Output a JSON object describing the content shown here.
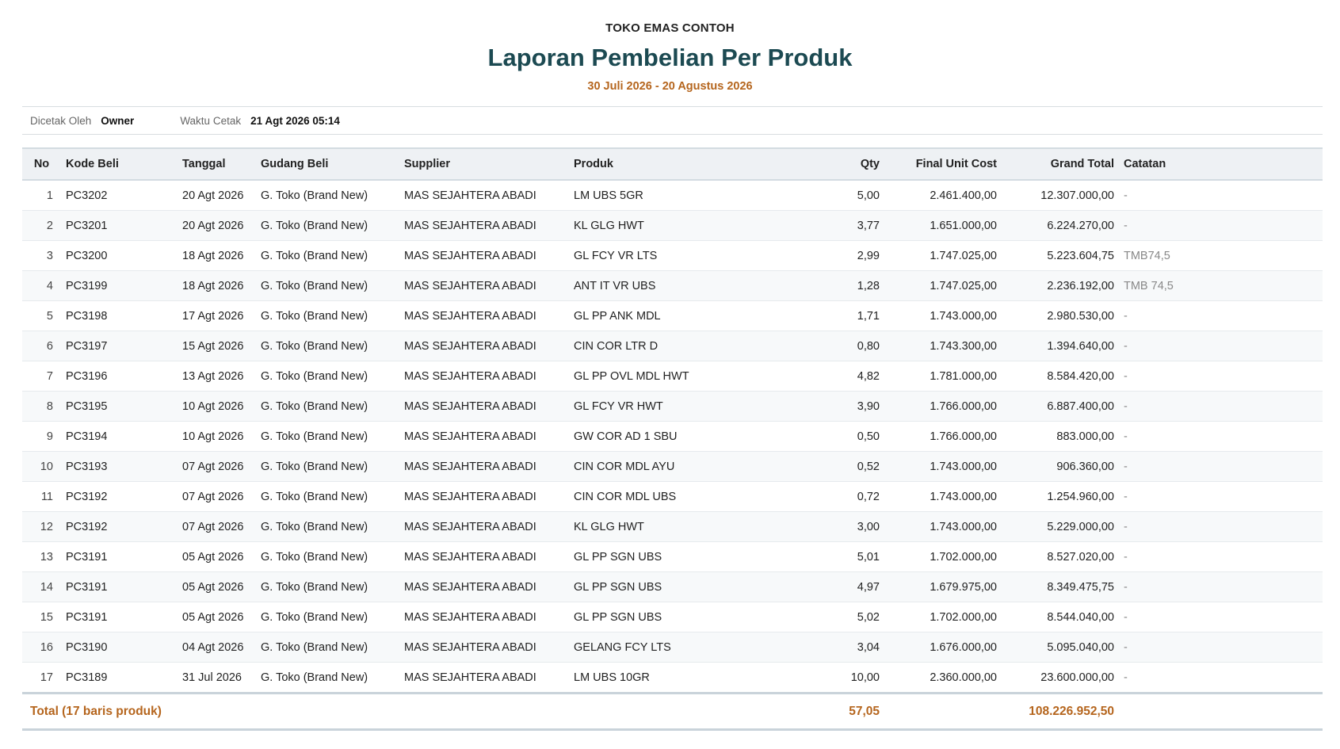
{
  "header": {
    "store_name": "TOKO EMAS CONTOH",
    "title": "Laporan Pembelian Per Produk",
    "period": "30 Juli 2026 - 20 Agustus 2026"
  },
  "meta": {
    "printed_by_label": "Dicetak Oleh",
    "printed_by_value": "Owner",
    "print_time_label": "Waktu Cetak",
    "print_time_value": "21 Agt 2026 05:14"
  },
  "table": {
    "columns": {
      "no": "No",
      "kode": "Kode Beli",
      "tanggal": "Tanggal",
      "gudang": "Gudang Beli",
      "supplier": "Supplier",
      "produk": "Produk",
      "qty": "Qty",
      "final_unit_cost": "Final Unit Cost",
      "grand_total": "Grand Total",
      "catatan": "Catatan"
    },
    "rows": [
      {
        "no": "1",
        "kode": "PC3202",
        "tanggal": "20 Agt 2026",
        "gudang": "G. Toko (Brand New)",
        "supplier": "MAS SEJAHTERA ABADI",
        "produk": "LM UBS 5GR",
        "qty": "5,00",
        "fuc": "2.461.400,00",
        "gt": "12.307.000,00",
        "catatan": "-"
      },
      {
        "no": "2",
        "kode": "PC3201",
        "tanggal": "20 Agt 2026",
        "gudang": "G. Toko (Brand New)",
        "supplier": "MAS SEJAHTERA ABADI",
        "produk": "KL GLG HWT",
        "qty": "3,77",
        "fuc": "1.651.000,00",
        "gt": "6.224.270,00",
        "catatan": "-"
      },
      {
        "no": "3",
        "kode": "PC3200",
        "tanggal": "18 Agt 2026",
        "gudang": "G. Toko (Brand New)",
        "supplier": "MAS SEJAHTERA ABADI",
        "produk": "GL FCY VR LTS",
        "qty": "2,99",
        "fuc": "1.747.025,00",
        "gt": "5.223.604,75",
        "catatan": "TMB74,5"
      },
      {
        "no": "4",
        "kode": "PC3199",
        "tanggal": "18 Agt 2026",
        "gudang": "G. Toko (Brand New)",
        "supplier": "MAS SEJAHTERA ABADI",
        "produk": "ANT IT VR UBS",
        "qty": "1,28",
        "fuc": "1.747.025,00",
        "gt": "2.236.192,00",
        "catatan": "TMB 74,5"
      },
      {
        "no": "5",
        "kode": "PC3198",
        "tanggal": "17 Agt 2026",
        "gudang": "G. Toko (Brand New)",
        "supplier": "MAS SEJAHTERA ABADI",
        "produk": "GL PP ANK MDL",
        "qty": "1,71",
        "fuc": "1.743.000,00",
        "gt": "2.980.530,00",
        "catatan": "-"
      },
      {
        "no": "6",
        "kode": "PC3197",
        "tanggal": "15 Agt 2026",
        "gudang": "G. Toko (Brand New)",
        "supplier": "MAS SEJAHTERA ABADI",
        "produk": "CIN COR LTR D",
        "qty": "0,80",
        "fuc": "1.743.300,00",
        "gt": "1.394.640,00",
        "catatan": "-"
      },
      {
        "no": "7",
        "kode": "PC3196",
        "tanggal": "13 Agt 2026",
        "gudang": "G. Toko (Brand New)",
        "supplier": "MAS SEJAHTERA ABADI",
        "produk": "GL PP OVL MDL HWT",
        "qty": "4,82",
        "fuc": "1.781.000,00",
        "gt": "8.584.420,00",
        "catatan": "-"
      },
      {
        "no": "8",
        "kode": "PC3195",
        "tanggal": "10 Agt 2026",
        "gudang": "G. Toko (Brand New)",
        "supplier": "MAS SEJAHTERA ABADI",
        "produk": "GL FCY VR HWT",
        "qty": "3,90",
        "fuc": "1.766.000,00",
        "gt": "6.887.400,00",
        "catatan": "-"
      },
      {
        "no": "9",
        "kode": "PC3194",
        "tanggal": "10 Agt 2026",
        "gudang": "G. Toko (Brand New)",
        "supplier": "MAS SEJAHTERA ABADI",
        "produk": "GW COR AD 1 SBU",
        "qty": "0,50",
        "fuc": "1.766.000,00",
        "gt": "883.000,00",
        "catatan": "-"
      },
      {
        "no": "10",
        "kode": "PC3193",
        "tanggal": "07 Agt 2026",
        "gudang": "G. Toko (Brand New)",
        "supplier": "MAS SEJAHTERA ABADI",
        "produk": "CIN COR MDL AYU",
        "qty": "0,52",
        "fuc": "1.743.000,00",
        "gt": "906.360,00",
        "catatan": "-"
      },
      {
        "no": "11",
        "kode": "PC3192",
        "tanggal": "07 Agt 2026",
        "gudang": "G. Toko (Brand New)",
        "supplier": "MAS SEJAHTERA ABADI",
        "produk": "CIN COR MDL UBS",
        "qty": "0,72",
        "fuc": "1.743.000,00",
        "gt": "1.254.960,00",
        "catatan": "-"
      },
      {
        "no": "12",
        "kode": "PC3192",
        "tanggal": "07 Agt 2026",
        "gudang": "G. Toko (Brand New)",
        "supplier": "MAS SEJAHTERA ABADI",
        "produk": "KL GLG HWT",
        "qty": "3,00",
        "fuc": "1.743.000,00",
        "gt": "5.229.000,00",
        "catatan": "-"
      },
      {
        "no": "13",
        "kode": "PC3191",
        "tanggal": "05 Agt 2026",
        "gudang": "G. Toko (Brand New)",
        "supplier": "MAS SEJAHTERA ABADI",
        "produk": "GL PP SGN UBS",
        "qty": "5,01",
        "fuc": "1.702.000,00",
        "gt": "8.527.020,00",
        "catatan": "-"
      },
      {
        "no": "14",
        "kode": "PC3191",
        "tanggal": "05 Agt 2026",
        "gudang": "G. Toko (Brand New)",
        "supplier": "MAS SEJAHTERA ABADI",
        "produk": "GL PP SGN UBS",
        "qty": "4,97",
        "fuc": "1.679.975,00",
        "gt": "8.349.475,75",
        "catatan": "-"
      },
      {
        "no": "15",
        "kode": "PC3191",
        "tanggal": "05 Agt 2026",
        "gudang": "G. Toko (Brand New)",
        "supplier": "MAS SEJAHTERA ABADI",
        "produk": "GL PP SGN UBS",
        "qty": "5,02",
        "fuc": "1.702.000,00",
        "gt": "8.544.040,00",
        "catatan": "-"
      },
      {
        "no": "16",
        "kode": "PC3190",
        "tanggal": "04 Agt 2026",
        "gudang": "G. Toko (Brand New)",
        "supplier": "MAS SEJAHTERA ABADI",
        "produk": "GELANG FCY LTS",
        "qty": "3,04",
        "fuc": "1.676.000,00",
        "gt": "5.095.040,00",
        "catatan": "-"
      },
      {
        "no": "17",
        "kode": "PC3189",
        "tanggal": "31 Jul 2026",
        "gudang": "G. Toko (Brand New)",
        "supplier": "MAS SEJAHTERA ABADI",
        "produk": "LM UBS 10GR",
        "qty": "10,00",
        "fuc": "2.360.000,00",
        "gt": "23.600.000,00",
        "catatan": "-"
      }
    ],
    "footer": {
      "label": "Total (17 baris produk)",
      "qty_total": "57,05",
      "grand_total": "108.226.952,50"
    }
  },
  "colors": {
    "title": "#1c4a52",
    "accent": "#b5651d",
    "header_bg": "#eef1f4"
  }
}
